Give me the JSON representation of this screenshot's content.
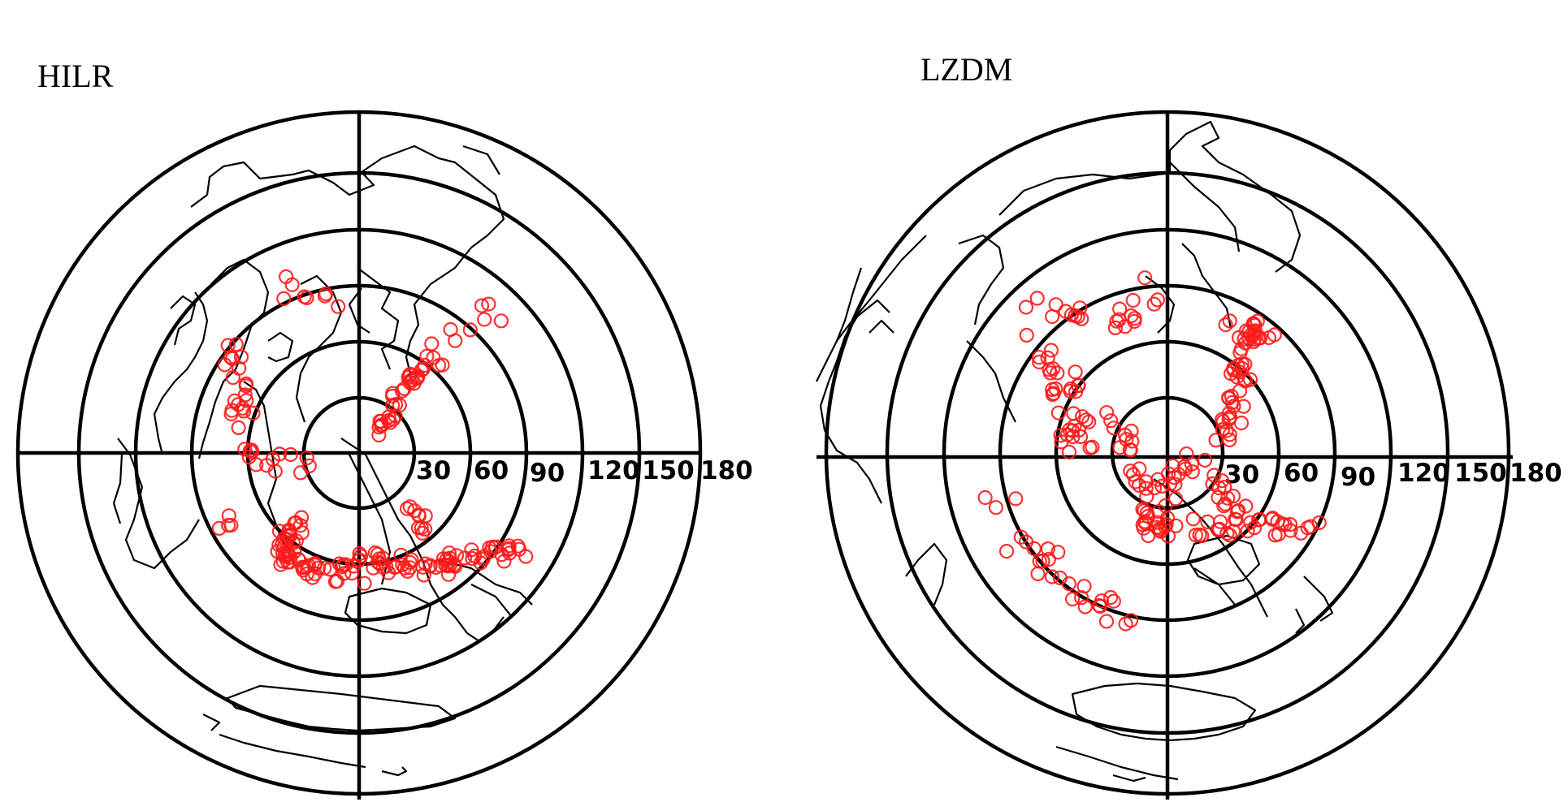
{
  "panels": [
    {
      "title": "HILR",
      "distance_rings_deg": [
        30,
        60,
        90,
        120,
        150,
        180
      ],
      "ring_labels": [
        "30",
        "60",
        "90",
        "120",
        "150",
        "180"
      ],
      "marker_color": "#ff1a1a",
      "marker_shape": "open circle"
    },
    {
      "title": "LZDM",
      "distance_rings_deg": [
        30,
        60,
        90,
        120,
        150,
        180
      ],
      "ring_labels": [
        "30",
        "60",
        "90",
        "120",
        "150",
        "180"
      ],
      "marker_color": "#ff1a1a",
      "marker_shape": "open circle"
    }
  ],
  "colors": {
    "rings": "#000000",
    "coastline": "#000000",
    "markers": "#ff1a1a",
    "background": "#ffffff"
  }
}
